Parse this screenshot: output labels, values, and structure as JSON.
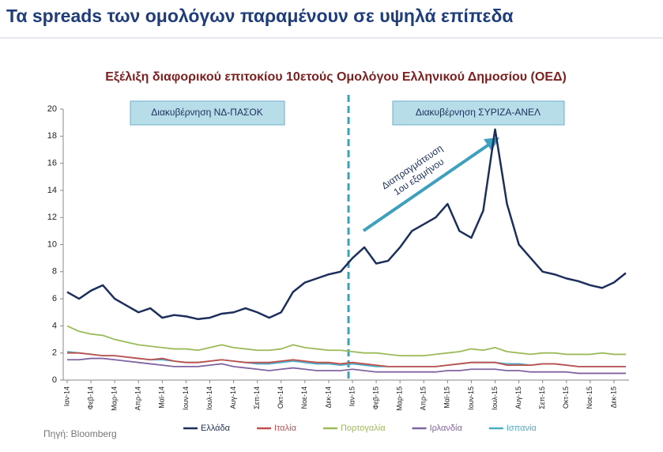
{
  "header": {
    "title": "Τα spreads των ομολόγων παραμένουν σε υψηλά επίπεδα"
  },
  "chart_data": {
    "type": "line",
    "title": "Εξέλιξη διαφορικού επιτοκίου 10ετούς Ομολόγου Ελληνικού Δημοσίου (ΟΕΔ)",
    "categories": [
      "Ιαν-14",
      null,
      "Φεβ-14",
      null,
      "Μαρ-14",
      null,
      "Απρ-14",
      null,
      "Μαϊ-14",
      null,
      "Ιουν-14",
      null,
      "Ιουλ-14",
      null,
      "Αυγ-14",
      null,
      "Σεπ-14",
      null,
      "Οκτ-14",
      null,
      "Νοε-14",
      null,
      "Δεκ-14",
      null,
      "Ιαν-15",
      null,
      "Φεβ-15",
      null,
      "Μαρ-15",
      null,
      "Απρ-15",
      null,
      "Μαϊ-15",
      null,
      "Ιουν-15",
      null,
      "Ιουλ-15",
      null,
      "Αυγ-15",
      null,
      "Σεπ-15",
      null,
      "Οκτ-15",
      null,
      "Νοε-15",
      null,
      "Δεκ-15",
      null
    ],
    "series": [
      {
        "name": "Ελλάδα",
        "color": "#1c2f5c",
        "values": [
          6.5,
          6.0,
          6.6,
          7.0,
          6.0,
          5.5,
          5.0,
          5.3,
          4.6,
          4.8,
          4.7,
          4.5,
          4.6,
          4.9,
          5.0,
          5.3,
          5.0,
          4.6,
          5.0,
          6.5,
          7.2,
          7.5,
          7.8,
          8.0,
          9.0,
          9.8,
          8.6,
          8.8,
          9.8,
          11.0,
          11.5,
          12.0,
          13.0,
          11.0,
          10.5,
          12.5,
          18.5,
          13.0,
          10.0,
          9.0,
          8.0,
          7.8,
          7.5,
          7.3,
          7.0,
          6.8,
          7.2,
          7.9
        ]
      },
      {
        "name": "Ιταλία",
        "color": "#c0504d",
        "values": [
          2.0,
          2.0,
          1.9,
          1.8,
          1.8,
          1.7,
          1.6,
          1.5,
          1.6,
          1.4,
          1.3,
          1.3,
          1.4,
          1.5,
          1.4,
          1.3,
          1.3,
          1.3,
          1.4,
          1.5,
          1.4,
          1.3,
          1.3,
          1.2,
          1.3,
          1.2,
          1.1,
          1.0,
          1.0,
          1.0,
          1.0,
          1.0,
          1.1,
          1.2,
          1.3,
          1.3,
          1.3,
          1.1,
          1.1,
          1.1,
          1.2,
          1.2,
          1.1,
          1.0,
          1.0,
          1.0,
          1.0,
          1.0
        ]
      },
      {
        "name": "Πορτογαλία",
        "color": "#9bbb59",
        "values": [
          4.0,
          3.6,
          3.4,
          3.3,
          3.0,
          2.8,
          2.6,
          2.5,
          2.4,
          2.3,
          2.3,
          2.2,
          2.4,
          2.6,
          2.4,
          2.3,
          2.2,
          2.2,
          2.3,
          2.6,
          2.4,
          2.3,
          2.2,
          2.2,
          2.1,
          2.0,
          2.0,
          1.9,
          1.8,
          1.8,
          1.8,
          1.9,
          2.0,
          2.1,
          2.3,
          2.2,
          2.4,
          2.1,
          2.0,
          1.9,
          2.0,
          2.0,
          1.9,
          1.9,
          1.9,
          2.0,
          1.9,
          1.9
        ]
      },
      {
        "name": "Ιρλανδία",
        "color": "#8064a2",
        "values": [
          1.5,
          1.5,
          1.6,
          1.6,
          1.5,
          1.4,
          1.3,
          1.2,
          1.1,
          1.0,
          1.0,
          1.0,
          1.1,
          1.2,
          1.0,
          0.9,
          0.8,
          0.7,
          0.8,
          0.9,
          0.8,
          0.7,
          0.7,
          0.7,
          0.8,
          0.7,
          0.6,
          0.6,
          0.6,
          0.6,
          0.6,
          0.6,
          0.7,
          0.7,
          0.8,
          0.8,
          0.8,
          0.7,
          0.7,
          0.6,
          0.6,
          0.6,
          0.6,
          0.5,
          0.5,
          0.5,
          0.5,
          0.5
        ]
      },
      {
        "name": "Ισπανία",
        "color": "#4bacc6",
        "values": [
          2.1,
          2.0,
          1.9,
          1.8,
          1.8,
          1.7,
          1.6,
          1.5,
          1.5,
          1.4,
          1.3,
          1.3,
          1.4,
          1.5,
          1.4,
          1.3,
          1.2,
          1.2,
          1.3,
          1.4,
          1.3,
          1.2,
          1.2,
          1.1,
          1.2,
          1.1,
          1.0,
          1.0,
          1.0,
          1.0,
          1.0,
          1.0,
          1.1,
          1.2,
          1.3,
          1.3,
          1.3,
          1.2,
          1.2,
          1.1,
          1.2,
          1.2,
          1.1,
          1.0,
          1.0,
          1.0,
          1.0,
          1.0
        ]
      }
    ],
    "ylim": [
      0,
      20
    ],
    "yticks": [
      0,
      2,
      4,
      6,
      8,
      10,
      12,
      14,
      16,
      18,
      20
    ],
    "grid": false,
    "annotations": [
      "Διακυβέρνηση ΝΔ-ΠΑΣΟΚ",
      "Διακυβέρνηση ΣΥΡΙΖΑ-ΑΝΕΛ",
      "Διαπραγμάτευση",
      "1ου εξαμήνου"
    ],
    "source": "Πηγή: Bloomberg"
  }
}
